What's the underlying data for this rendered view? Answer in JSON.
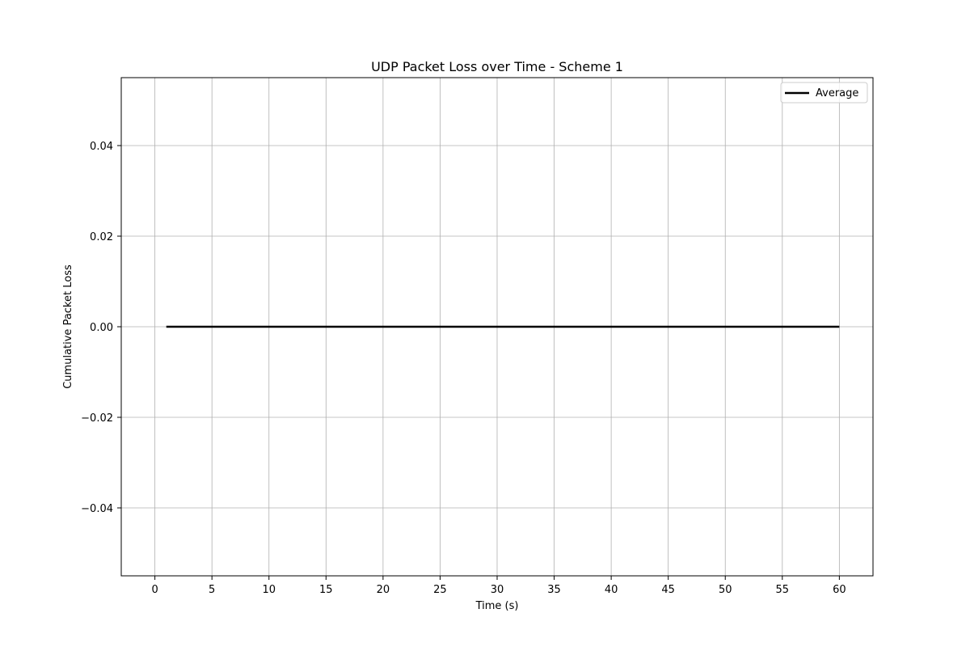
{
  "chart_data": {
    "type": "line",
    "title": "UDP Packet Loss over Time - Scheme 1",
    "xlabel": "Time (s)",
    "ylabel": "Cumulative Packet Loss",
    "xlim": [
      -2.95,
      62.95
    ],
    "ylim": [
      -0.055,
      0.055
    ],
    "xticks": [
      0,
      5,
      10,
      15,
      20,
      25,
      30,
      35,
      40,
      45,
      50,
      55,
      60
    ],
    "yticks": [
      -0.04,
      -0.02,
      0.0,
      0.02,
      0.04
    ],
    "ytick_labels": [
      "−0.04",
      "−0.02",
      "0.00",
      "0.02",
      "0.04"
    ],
    "grid": true,
    "legend": {
      "position": "top-right"
    },
    "series": [
      {
        "name": "Average",
        "color": "#000000",
        "x": [
          1,
          60
        ],
        "y": [
          0,
          0
        ]
      }
    ]
  },
  "colors": {
    "grid": "#b0b0b0",
    "axes": "#000000",
    "background": "#ffffff"
  }
}
